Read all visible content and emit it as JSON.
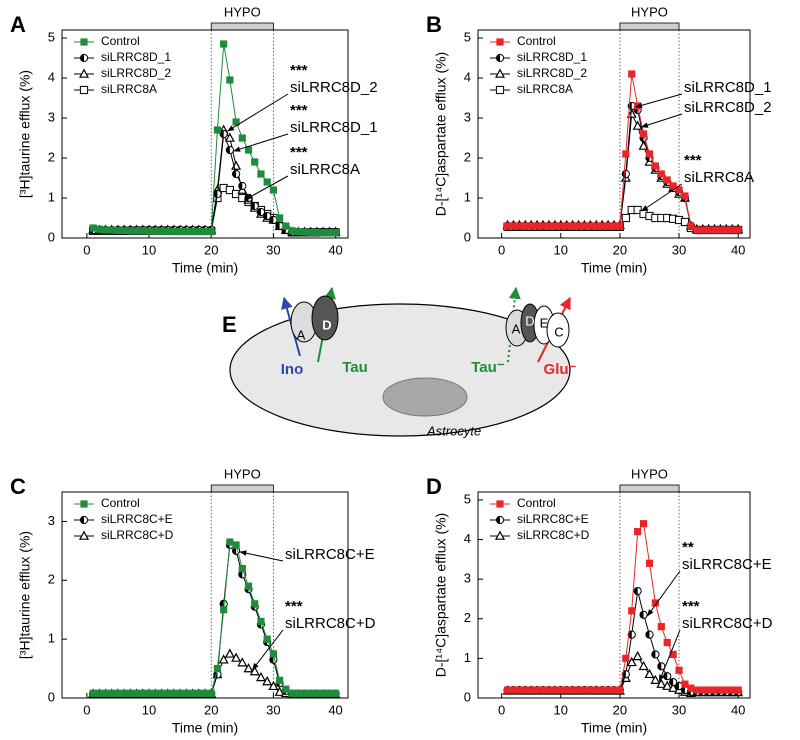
{
  "chart_data": [
    {
      "type": "line",
      "panel": "A",
      "ylabel": "[³H]taurine efflux (%)",
      "xlabel": "Time (min)",
      "hypo": {
        "label": "HYPO",
        "start": 20,
        "end": 30
      },
      "xlim": [
        -4,
        42
      ],
      "xticks": [
        0,
        10,
        20,
        30,
        40
      ],
      "ylim": [
        0,
        5.2
      ],
      "yticks": [
        0,
        1,
        2,
        3,
        4,
        5
      ],
      "legend": "upper left",
      "x": [
        1,
        2,
        3,
        4,
        5,
        6,
        7,
        8,
        9,
        10,
        11,
        12,
        13,
        14,
        15,
        16,
        17,
        18,
        19,
        20,
        21,
        22,
        23,
        24,
        25,
        26,
        27,
        28,
        29,
        30,
        31,
        32,
        33,
        34,
        35,
        36,
        37,
        38,
        39,
        40
      ],
      "series": [
        {
          "name": "Control",
          "color": "#1e8c3a",
          "marker": "square",
          "values": [
            0.25,
            0.22,
            0.2,
            0.2,
            0.19,
            0.19,
            0.18,
            0.18,
            0.18,
            0.17,
            0.17,
            0.17,
            0.17,
            0.16,
            0.16,
            0.16,
            0.16,
            0.16,
            0.16,
            0.16,
            2.7,
            4.85,
            3.95,
            2.9,
            2.5,
            2.2,
            1.9,
            1.6,
            1.4,
            1.2,
            0.5,
            0.3,
            0.18,
            0.16,
            0.15,
            0.14,
            0.14,
            0.13,
            0.13,
            0.13
          ]
        },
        {
          "name": "siLRRC8D_1",
          "color": "#000000",
          "marker": "half-circle",
          "values": [
            0.2,
            0.2,
            0.2,
            0.2,
            0.2,
            0.2,
            0.2,
            0.2,
            0.2,
            0.2,
            0.2,
            0.2,
            0.2,
            0.2,
            0.2,
            0.2,
            0.2,
            0.2,
            0.2,
            0.2,
            1.1,
            2.6,
            2.2,
            1.6,
            1.3,
            1.0,
            0.8,
            0.65,
            0.55,
            0.45,
            0.3,
            0.2,
            0.15,
            0.15,
            0.15,
            0.15,
            0.15,
            0.15,
            0.15,
            0.15
          ]
        },
        {
          "name": "siLRRC8D_2",
          "color": "#000000",
          "marker": "triangle",
          "values": [
            0.2,
            0.2,
            0.2,
            0.2,
            0.2,
            0.2,
            0.2,
            0.2,
            0.2,
            0.2,
            0.2,
            0.2,
            0.2,
            0.2,
            0.2,
            0.2,
            0.2,
            0.2,
            0.2,
            0.2,
            1.2,
            2.7,
            2.5,
            1.8,
            1.2,
            0.95,
            0.75,
            0.6,
            0.5,
            0.45,
            0.3,
            0.2,
            0.15,
            0.15,
            0.15,
            0.15,
            0.15,
            0.15,
            0.15,
            0.15
          ]
        },
        {
          "name": "siLRRC8A",
          "color": "#000000",
          "marker": "open-square",
          "values": [
            0.18,
            0.18,
            0.18,
            0.18,
            0.18,
            0.18,
            0.18,
            0.18,
            0.18,
            0.18,
            0.18,
            0.18,
            0.18,
            0.18,
            0.18,
            0.18,
            0.18,
            0.18,
            0.18,
            0.18,
            1.0,
            1.25,
            1.2,
            1.1,
            1.0,
            0.9,
            0.8,
            0.7,
            0.6,
            0.5,
            0.3,
            0.2,
            0.14,
            0.14,
            0.14,
            0.14,
            0.14,
            0.14,
            0.14,
            0.14
          ]
        }
      ],
      "annotations": [
        {
          "stars": "***",
          "label": "siLRRC8D_2"
        },
        {
          "stars": "***",
          "label": "siLRRC8D_1"
        },
        {
          "stars": "***",
          "label": "siLRRC8A"
        }
      ]
    },
    {
      "type": "line",
      "panel": "B",
      "ylabel": "D-[¹⁴C]aspartate efflux (%)",
      "xlabel": "Time (min)",
      "hypo": {
        "label": "HYPO",
        "start": 20,
        "end": 30
      },
      "xlim": [
        -4,
        42
      ],
      "xticks": [
        0,
        10,
        20,
        30,
        40
      ],
      "ylim": [
        0,
        5.2
      ],
      "yticks": [
        0,
        1,
        2,
        3,
        4,
        5
      ],
      "legend": "upper left",
      "x": [
        1,
        2,
        3,
        4,
        5,
        6,
        7,
        8,
        9,
        10,
        11,
        12,
        13,
        14,
        15,
        16,
        17,
        18,
        19,
        20,
        21,
        22,
        23,
        24,
        25,
        26,
        27,
        28,
        29,
        30,
        31,
        32,
        33,
        34,
        35,
        36,
        37,
        38,
        39,
        40
      ],
      "series": [
        {
          "name": "Control",
          "color": "#e8262a",
          "marker": "square",
          "values": [
            0.3,
            0.3,
            0.3,
            0.3,
            0.3,
            0.3,
            0.3,
            0.3,
            0.3,
            0.3,
            0.3,
            0.3,
            0.3,
            0.3,
            0.3,
            0.3,
            0.3,
            0.3,
            0.3,
            0.3,
            2.1,
            4.1,
            3.3,
            2.6,
            2.1,
            1.8,
            1.6,
            1.45,
            1.3,
            1.2,
            1.05,
            0.3,
            0.2,
            0.2,
            0.2,
            0.2,
            0.2,
            0.2,
            0.2,
            0.2
          ]
        },
        {
          "name": "siLRRC8D_1",
          "color": "#000000",
          "marker": "half-circle",
          "values": [
            0.3,
            0.3,
            0.3,
            0.3,
            0.3,
            0.3,
            0.3,
            0.3,
            0.3,
            0.3,
            0.3,
            0.3,
            0.3,
            0.3,
            0.3,
            0.3,
            0.3,
            0.3,
            0.3,
            0.3,
            1.6,
            3.3,
            3.2,
            2.5,
            2.0,
            1.75,
            1.55,
            1.4,
            1.25,
            1.15,
            1.0,
            0.3,
            0.2,
            0.2,
            0.2,
            0.2,
            0.2,
            0.2,
            0.2,
            0.2
          ]
        },
        {
          "name": "siLRRC8D_2",
          "color": "#000000",
          "marker": "triangle",
          "values": [
            0.32,
            0.32,
            0.32,
            0.32,
            0.32,
            0.32,
            0.32,
            0.32,
            0.32,
            0.32,
            0.32,
            0.32,
            0.32,
            0.32,
            0.32,
            0.32,
            0.32,
            0.32,
            0.32,
            0.32,
            1.5,
            3.1,
            2.8,
            2.3,
            1.9,
            1.7,
            1.5,
            1.35,
            1.25,
            1.1,
            1.0,
            0.3,
            0.22,
            0.22,
            0.22,
            0.22,
            0.22,
            0.22,
            0.22,
            0.22
          ]
        },
        {
          "name": "siLRRC8A",
          "color": "#000000",
          "marker": "open-square",
          "values": [
            0.28,
            0.28,
            0.28,
            0.28,
            0.28,
            0.28,
            0.28,
            0.28,
            0.28,
            0.28,
            0.28,
            0.28,
            0.28,
            0.28,
            0.28,
            0.28,
            0.28,
            0.28,
            0.28,
            0.28,
            0.5,
            0.7,
            0.7,
            0.6,
            0.55,
            0.5,
            0.5,
            0.5,
            0.48,
            0.45,
            0.4,
            0.25,
            0.2,
            0.2,
            0.2,
            0.2,
            0.2,
            0.2,
            0.2,
            0.2
          ]
        }
      ],
      "annotations": [
        {
          "label": "siLRRC8D_1"
        },
        {
          "label": "siLRRC8D_2"
        },
        {
          "stars": "***",
          "label": "siLRRC8A"
        }
      ]
    },
    {
      "type": "line",
      "panel": "C",
      "ylabel": "[³H]taurine efflux (%)",
      "xlabel": "Time (min)",
      "hypo": {
        "label": "HYPO",
        "start": 20,
        "end": 30
      },
      "xlim": [
        -4,
        42
      ],
      "xticks": [
        0,
        10,
        20,
        30,
        40
      ],
      "ylim": [
        0,
        3.5
      ],
      "yticks": [
        0,
        1,
        2,
        3
      ],
      "legend": "upper left",
      "x": [
        1,
        2,
        3,
        4,
        5,
        6,
        7,
        8,
        9,
        10,
        11,
        12,
        13,
        14,
        15,
        16,
        17,
        18,
        19,
        20,
        21,
        22,
        23,
        24,
        25,
        26,
        27,
        28,
        29,
        30,
        31,
        32,
        33,
        34,
        35,
        36,
        37,
        38,
        39,
        40
      ],
      "series": [
        {
          "name": "Control",
          "color": "#1e8c3a",
          "marker": "square",
          "values": [
            0.08,
            0.08,
            0.08,
            0.08,
            0.08,
            0.08,
            0.08,
            0.08,
            0.08,
            0.08,
            0.08,
            0.08,
            0.08,
            0.08,
            0.08,
            0.08,
            0.08,
            0.08,
            0.08,
            0.08,
            0.5,
            1.5,
            2.65,
            2.6,
            2.2,
            1.9,
            1.6,
            1.3,
            1.0,
            0.75,
            0.3,
            0.15,
            0.08,
            0.08,
            0.08,
            0.08,
            0.08,
            0.08,
            0.08,
            0.08
          ]
        },
        {
          "name": "siLRRC8C+E",
          "color": "#000000",
          "marker": "half-circle",
          "values": [
            0.07,
            0.07,
            0.07,
            0.07,
            0.07,
            0.07,
            0.07,
            0.07,
            0.07,
            0.07,
            0.07,
            0.07,
            0.07,
            0.07,
            0.07,
            0.07,
            0.07,
            0.07,
            0.07,
            0.07,
            0.4,
            1.6,
            2.6,
            2.5,
            2.1,
            1.85,
            1.55,
            1.25,
            0.95,
            0.65,
            0.25,
            0.12,
            0.07,
            0.07,
            0.07,
            0.07,
            0.07,
            0.07,
            0.07,
            0.07
          ]
        },
        {
          "name": "siLRRC8C+D",
          "color": "#000000",
          "marker": "triangle",
          "values": [
            0.07,
            0.07,
            0.07,
            0.07,
            0.07,
            0.07,
            0.07,
            0.07,
            0.07,
            0.07,
            0.07,
            0.07,
            0.07,
            0.07,
            0.07,
            0.07,
            0.07,
            0.07,
            0.07,
            0.07,
            0.4,
            0.65,
            0.75,
            0.68,
            0.6,
            0.5,
            0.45,
            0.35,
            0.28,
            0.2,
            0.1,
            0.08,
            0.06,
            0.06,
            0.06,
            0.06,
            0.06,
            0.06,
            0.06,
            0.06
          ]
        }
      ],
      "annotations": [
        {
          "label": "siLRRC8C+E"
        },
        {
          "stars": "***",
          "label": "siLRRC8C+D"
        }
      ]
    },
    {
      "type": "line",
      "panel": "D",
      "ylabel": "D-[¹⁴C]aspartate efflux (%)",
      "xlabel": "Time (min)",
      "hypo": {
        "label": "HYPO",
        "start": 20,
        "end": 30
      },
      "xlim": [
        -4,
        42
      ],
      "xticks": [
        0,
        10,
        20,
        30,
        40
      ],
      "ylim": [
        0,
        5.2
      ],
      "yticks": [
        0,
        1,
        2,
        3,
        4,
        5
      ],
      "legend": "upper left",
      "x": [
        1,
        2,
        3,
        4,
        5,
        6,
        7,
        8,
        9,
        10,
        11,
        12,
        13,
        14,
        15,
        16,
        17,
        18,
        19,
        20,
        21,
        22,
        23,
        24,
        25,
        26,
        27,
        28,
        29,
        30,
        31,
        32,
        33,
        34,
        35,
        36,
        37,
        38,
        39,
        40
      ],
      "series": [
        {
          "name": "Control",
          "color": "#e8262a",
          "marker": "square",
          "values": [
            0.2,
            0.2,
            0.2,
            0.2,
            0.2,
            0.2,
            0.2,
            0.2,
            0.2,
            0.2,
            0.2,
            0.2,
            0.2,
            0.2,
            0.2,
            0.2,
            0.2,
            0.2,
            0.2,
            0.2,
            1.0,
            2.2,
            4.2,
            4.4,
            3.4,
            2.4,
            1.8,
            1.4,
            1.1,
            0.7,
            0.35,
            0.25,
            0.2,
            0.2,
            0.2,
            0.2,
            0.2,
            0.2,
            0.2,
            0.2
          ]
        },
        {
          "name": "siLRRC8C+E",
          "color": "#000000",
          "marker": "half-circle",
          "values": [
            0.2,
            0.2,
            0.2,
            0.2,
            0.2,
            0.2,
            0.2,
            0.2,
            0.2,
            0.2,
            0.2,
            0.2,
            0.2,
            0.2,
            0.2,
            0.2,
            0.2,
            0.2,
            0.2,
            0.2,
            0.6,
            1.6,
            2.7,
            2.1,
            1.6,
            1.1,
            0.8,
            0.55,
            0.4,
            0.3,
            0.2,
            0.15,
            0.15,
            0.15,
            0.15,
            0.15,
            0.15,
            0.15,
            0.15,
            0.15
          ]
        },
        {
          "name": "siLRRC8C+D",
          "color": "#000000",
          "marker": "triangle",
          "values": [
            0.18,
            0.18,
            0.18,
            0.18,
            0.18,
            0.18,
            0.18,
            0.18,
            0.18,
            0.18,
            0.18,
            0.18,
            0.18,
            0.18,
            0.18,
            0.18,
            0.18,
            0.18,
            0.18,
            0.18,
            0.5,
            0.9,
            1.05,
            0.8,
            0.6,
            0.45,
            0.35,
            0.3,
            0.25,
            0.2,
            0.15,
            0.12,
            0.14,
            0.14,
            0.14,
            0.14,
            0.14,
            0.14,
            0.14,
            0.14
          ]
        }
      ],
      "annotations": [
        {
          "stars": "**",
          "label": "siLRRC8C+E"
        },
        {
          "stars": "***",
          "label": "siLRRC8C+D"
        }
      ]
    }
  ],
  "diagram": {
    "panel": "E",
    "cell": "Astrocyte",
    "left_channel": {
      "subunits": [
        "A",
        "D"
      ],
      "ions": [
        "Ino",
        "Tau"
      ]
    },
    "right_channel": {
      "subunits": [
        "A",
        "D",
        "E",
        "C"
      ],
      "ions": [
        "Tau⁻",
        "Glu⁻"
      ]
    }
  }
}
